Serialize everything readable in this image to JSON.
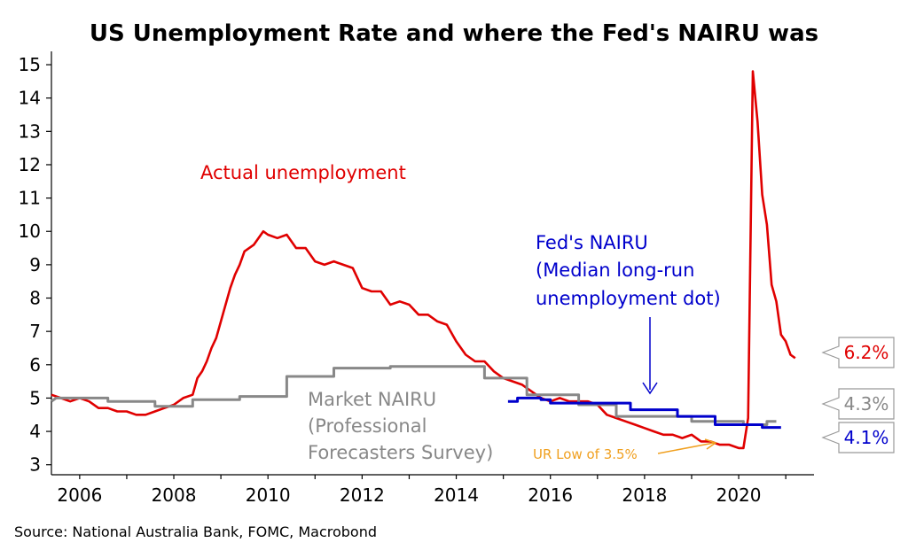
{
  "chart_data": {
    "type": "line",
    "title": "US Unemployment Rate and where the Fed's NAIRU was",
    "source": "Source: National Australia Bank, FOMC, Macrobond",
    "xlim": [
      2005.4,
      2021.6
    ],
    "ylim": [
      2.7,
      15.4
    ],
    "xticks": [
      2006,
      2008,
      2010,
      2012,
      2014,
      2016,
      2018,
      2020
    ],
    "yticks": [
      3,
      4,
      5,
      6,
      7,
      8,
      9,
      10,
      11,
      12,
      13,
      14,
      15
    ],
    "series": [
      {
        "color": "#e00000",
        "points": [
          [
            2005.4,
            5.1
          ],
          [
            2005.6,
            5.0
          ],
          [
            2005.8,
            4.9
          ],
          [
            2006.0,
            5.0
          ],
          [
            2006.2,
            4.9
          ],
          [
            2006.4,
            4.7
          ],
          [
            2006.6,
            4.7
          ],
          [
            2006.8,
            4.6
          ],
          [
            2007.0,
            4.6
          ],
          [
            2007.2,
            4.5
          ],
          [
            2007.4,
            4.5
          ],
          [
            2007.6,
            4.6
          ],
          [
            2007.8,
            4.7
          ],
          [
            2008.0,
            4.8
          ],
          [
            2008.2,
            5.0
          ],
          [
            2008.4,
            5.1
          ],
          [
            2008.5,
            5.6
          ],
          [
            2008.6,
            5.8
          ],
          [
            2008.7,
            6.1
          ],
          [
            2008.8,
            6.5
          ],
          [
            2008.9,
            6.8
          ],
          [
            2009.0,
            7.3
          ],
          [
            2009.1,
            7.8
          ],
          [
            2009.2,
            8.3
          ],
          [
            2009.3,
            8.7
          ],
          [
            2009.4,
            9.0
          ],
          [
            2009.5,
            9.4
          ],
          [
            2009.6,
            9.5
          ],
          [
            2009.7,
            9.6
          ],
          [
            2009.8,
            9.8
          ],
          [
            2009.9,
            10.0
          ],
          [
            2010.0,
            9.9
          ],
          [
            2010.2,
            9.8
          ],
          [
            2010.4,
            9.9
          ],
          [
            2010.6,
            9.5
          ],
          [
            2010.8,
            9.5
          ],
          [
            2011.0,
            9.1
          ],
          [
            2011.2,
            9.0
          ],
          [
            2011.4,
            9.1
          ],
          [
            2011.6,
            9.0
          ],
          [
            2011.8,
            8.9
          ],
          [
            2012.0,
            8.3
          ],
          [
            2012.2,
            8.2
          ],
          [
            2012.4,
            8.2
          ],
          [
            2012.6,
            7.8
          ],
          [
            2012.8,
            7.9
          ],
          [
            2013.0,
            7.8
          ],
          [
            2013.2,
            7.5
          ],
          [
            2013.4,
            7.5
          ],
          [
            2013.6,
            7.3
          ],
          [
            2013.8,
            7.2
          ],
          [
            2014.0,
            6.7
          ],
          [
            2014.2,
            6.3
          ],
          [
            2014.4,
            6.1
          ],
          [
            2014.6,
            6.1
          ],
          [
            2014.8,
            5.8
          ],
          [
            2015.0,
            5.6
          ],
          [
            2015.2,
            5.5
          ],
          [
            2015.4,
            5.4
          ],
          [
            2015.6,
            5.2
          ],
          [
            2015.8,
            5.0
          ],
          [
            2016.0,
            4.9
          ],
          [
            2016.2,
            5.0
          ],
          [
            2016.4,
            4.9
          ],
          [
            2016.6,
            4.9
          ],
          [
            2016.8,
            4.9
          ],
          [
            2017.0,
            4.8
          ],
          [
            2017.2,
            4.5
          ],
          [
            2017.4,
            4.4
          ],
          [
            2017.6,
            4.3
          ],
          [
            2017.8,
            4.2
          ],
          [
            2018.0,
            4.1
          ],
          [
            2018.2,
            4.0
          ],
          [
            2018.4,
            3.9
          ],
          [
            2018.6,
            3.9
          ],
          [
            2018.8,
            3.8
          ],
          [
            2019.0,
            3.9
          ],
          [
            2019.2,
            3.7
          ],
          [
            2019.4,
            3.7
          ],
          [
            2019.6,
            3.6
          ],
          [
            2019.8,
            3.6
          ],
          [
            2020.0,
            3.5
          ],
          [
            2020.1,
            3.5
          ],
          [
            2020.2,
            4.4
          ],
          [
            2020.3,
            14.8
          ],
          [
            2020.4,
            13.3
          ],
          [
            2020.5,
            11.1
          ],
          [
            2020.6,
            10.2
          ],
          [
            2020.7,
            8.4
          ],
          [
            2020.8,
            7.9
          ],
          [
            2020.9,
            6.9
          ],
          [
            2021.0,
            6.7
          ],
          [
            2021.1,
            6.3
          ],
          [
            2021.2,
            6.2
          ]
        ]
      },
      {
        "color": "#888888",
        "points": [
          [
            2005.4,
            4.9
          ],
          [
            2005.5,
            5.0
          ],
          [
            2006.6,
            5.0
          ],
          [
            2006.6,
            4.9
          ],
          [
            2007.6,
            4.9
          ],
          [
            2007.6,
            4.75
          ],
          [
            2008.4,
            4.75
          ],
          [
            2008.4,
            4.95
          ],
          [
            2009.4,
            4.95
          ],
          [
            2009.4,
            5.05
          ],
          [
            2010.4,
            5.05
          ],
          [
            2010.4,
            5.65
          ],
          [
            2011.4,
            5.65
          ],
          [
            2011.4,
            5.9
          ],
          [
            2012.6,
            5.9
          ],
          [
            2012.6,
            5.95
          ],
          [
            2014.6,
            5.95
          ],
          [
            2014.6,
            5.6
          ],
          [
            2015.5,
            5.6
          ],
          [
            2015.5,
            5.1
          ],
          [
            2016.6,
            5.1
          ],
          [
            2016.6,
            4.8
          ],
          [
            2017.4,
            4.8
          ],
          [
            2017.4,
            4.45
          ],
          [
            2019.0,
            4.45
          ],
          [
            2019.0,
            4.3
          ],
          [
            2020.1,
            4.3
          ],
          [
            2020.1,
            4.2
          ],
          [
            2020.6,
            4.2
          ],
          [
            2020.6,
            4.3
          ],
          [
            2020.8,
            4.3
          ]
        ]
      },
      {
        "color": "#0000cc",
        "points": [
          [
            2015.1,
            4.9
          ],
          [
            2015.3,
            4.9
          ],
          [
            2015.3,
            5.0
          ],
          [
            2015.8,
            5.0
          ],
          [
            2015.8,
            4.95
          ],
          [
            2016.0,
            4.95
          ],
          [
            2016.0,
            4.85
          ],
          [
            2017.7,
            4.85
          ],
          [
            2017.7,
            4.65
          ],
          [
            2018.7,
            4.65
          ],
          [
            2018.7,
            4.45
          ],
          [
            2019.5,
            4.45
          ],
          [
            2019.5,
            4.2
          ],
          [
            2020.5,
            4.2
          ],
          [
            2020.5,
            4.12
          ],
          [
            2020.9,
            4.12
          ]
        ]
      }
    ],
    "annotations": {
      "actual": "Actual unemployment",
      "fed": [
        "Fed's NAIRU",
        "(Median long-run",
        "unemployment dot)"
      ],
      "market": [
        "Market NAIRU",
        "(Professional",
        "Forecasters Survey)"
      ],
      "ur_low": "UR Low of 3.5%"
    },
    "end_tags": [
      {
        "text": "6.2%",
        "color": "#e00000",
        "value": 6.2
      },
      {
        "text": "4.3%",
        "color": "#888888",
        "value": 4.3
      },
      {
        "text": "4.1%",
        "color": "#0000cc",
        "value": 4.1
      }
    ],
    "colors": {
      "red": "#e00000",
      "grey": "#888888",
      "blue": "#0000cc",
      "orange": "#f0a020"
    }
  }
}
